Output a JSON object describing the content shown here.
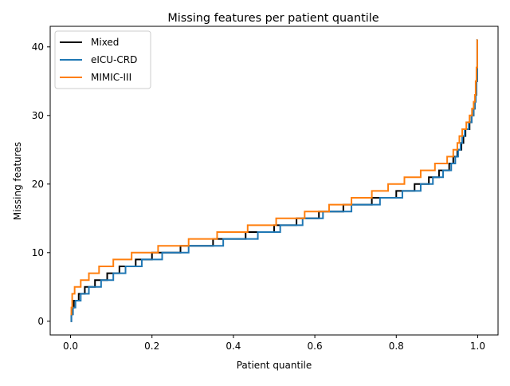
{
  "chart_data": {
    "type": "line",
    "title": "Missing features per patient quantile",
    "xlabel": "Patient quantile",
    "ylabel": "Missing features",
    "xlim": [
      -0.05,
      1.05
    ],
    "ylim": [
      -2.0,
      43.0
    ],
    "xticks": [
      0.0,
      0.2,
      0.4,
      0.6,
      0.8,
      1.0
    ],
    "xtick_labels": [
      "0.0",
      "0.2",
      "0.4",
      "0.6",
      "0.8",
      "1.0"
    ],
    "yticks": [
      0,
      10,
      20,
      30,
      40
    ],
    "ytick_labels": [
      "0",
      "10",
      "20",
      "30",
      "40"
    ],
    "grid": false,
    "legend_position": "top-left",
    "series": [
      {
        "name": "Mixed",
        "color": "#000000",
        "steps": [
          [
            0.0,
            0
          ],
          [
            0.002,
            1
          ],
          [
            0.004,
            2
          ],
          [
            0.008,
            3
          ],
          [
            0.02,
            4
          ],
          [
            0.035,
            5
          ],
          [
            0.06,
            6
          ],
          [
            0.09,
            7
          ],
          [
            0.12,
            8
          ],
          [
            0.16,
            9
          ],
          [
            0.2,
            10
          ],
          [
            0.27,
            11
          ],
          [
            0.35,
            12
          ],
          [
            0.43,
            13
          ],
          [
            0.5,
            14
          ],
          [
            0.555,
            15
          ],
          [
            0.61,
            16
          ],
          [
            0.67,
            17
          ],
          [
            0.74,
            18
          ],
          [
            0.8,
            19
          ],
          [
            0.845,
            20
          ],
          [
            0.88,
            21
          ],
          [
            0.905,
            22
          ],
          [
            0.93,
            23
          ],
          [
            0.94,
            24
          ],
          [
            0.95,
            25
          ],
          [
            0.96,
            26
          ],
          [
            0.965,
            27
          ],
          [
            0.97,
            28
          ],
          [
            0.98,
            29
          ],
          [
            0.985,
            30
          ],
          [
            0.99,
            31
          ],
          [
            0.993,
            32
          ],
          [
            0.995,
            33
          ],
          [
            0.997,
            35
          ],
          [
            0.999,
            41
          ]
        ]
      },
      {
        "name": "eICU-CRD",
        "color": "#1f77b4",
        "steps": [
          [
            0.0,
            0
          ],
          [
            0.002,
            1
          ],
          [
            0.006,
            2
          ],
          [
            0.012,
            3
          ],
          [
            0.025,
            4
          ],
          [
            0.045,
            5
          ],
          [
            0.075,
            6
          ],
          [
            0.105,
            7
          ],
          [
            0.135,
            8
          ],
          [
            0.175,
            9
          ],
          [
            0.225,
            10
          ],
          [
            0.29,
            11
          ],
          [
            0.375,
            12
          ],
          [
            0.46,
            13
          ],
          [
            0.515,
            14
          ],
          [
            0.57,
            15
          ],
          [
            0.62,
            16
          ],
          [
            0.69,
            17
          ],
          [
            0.76,
            18
          ],
          [
            0.815,
            19
          ],
          [
            0.86,
            20
          ],
          [
            0.89,
            21
          ],
          [
            0.915,
            22
          ],
          [
            0.935,
            23
          ],
          [
            0.945,
            24
          ],
          [
            0.952,
            25
          ],
          [
            0.958,
            26
          ],
          [
            0.962,
            27
          ],
          [
            0.968,
            28
          ],
          [
            0.978,
            29
          ],
          [
            0.985,
            30
          ],
          [
            0.99,
            31
          ],
          [
            0.993,
            32
          ],
          [
            0.995,
            33
          ],
          [
            0.997,
            35
          ],
          [
            0.999,
            41
          ]
        ]
      },
      {
        "name": "MIMIC-III",
        "color": "#ff7f0e",
        "steps": [
          [
            0.0,
            1
          ],
          [
            0.002,
            2
          ],
          [
            0.004,
            4
          ],
          [
            0.01,
            5
          ],
          [
            0.025,
            6
          ],
          [
            0.045,
            7
          ],
          [
            0.07,
            8
          ],
          [
            0.105,
            9
          ],
          [
            0.15,
            10
          ],
          [
            0.215,
            11
          ],
          [
            0.29,
            12
          ],
          [
            0.36,
            13
          ],
          [
            0.435,
            14
          ],
          [
            0.505,
            15
          ],
          [
            0.575,
            16
          ],
          [
            0.635,
            17
          ],
          [
            0.69,
            18
          ],
          [
            0.74,
            19
          ],
          [
            0.78,
            20
          ],
          [
            0.82,
            21
          ],
          [
            0.86,
            22
          ],
          [
            0.895,
            23
          ],
          [
            0.925,
            24
          ],
          [
            0.94,
            25
          ],
          [
            0.95,
            26
          ],
          [
            0.955,
            27
          ],
          [
            0.962,
            28
          ],
          [
            0.972,
            29
          ],
          [
            0.98,
            30
          ],
          [
            0.986,
            31
          ],
          [
            0.99,
            32
          ],
          [
            0.993,
            33
          ],
          [
            0.995,
            35
          ],
          [
            0.997,
            37
          ],
          [
            0.999,
            41
          ]
        ]
      }
    ]
  }
}
